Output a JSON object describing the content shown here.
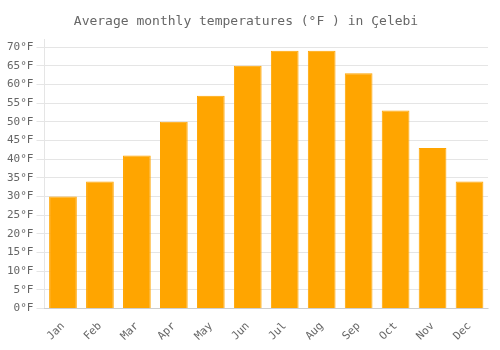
{
  "chart_data": {
    "type": "bar",
    "title": "Average monthly temperatures (°F ) in Çelebi",
    "categories": [
      "Jan",
      "Feb",
      "Mar",
      "Apr",
      "May",
      "Jun",
      "Jul",
      "Aug",
      "Sep",
      "Oct",
      "Nov",
      "Dec"
    ],
    "values": [
      30,
      34,
      41,
      50,
      57,
      65,
      69,
      69,
      63,
      53,
      43,
      34
    ],
    "color": "#FFA500",
    "ylim": [
      0,
      72
    ],
    "yticks": [
      {
        "value": 0,
        "label": "0°F"
      },
      {
        "value": 5,
        "label": "5°F"
      },
      {
        "value": 10,
        "label": "10°F"
      },
      {
        "value": 15,
        "label": "15°F"
      },
      {
        "value": 20,
        "label": "20°F"
      },
      {
        "value": 25,
        "label": "25°F"
      },
      {
        "value": 30,
        "label": "30°F"
      },
      {
        "value": 35,
        "label": "35°F"
      },
      {
        "value": 40,
        "label": "40°F"
      },
      {
        "value": 45,
        "label": "45°F"
      },
      {
        "value": 50,
        "label": "50°F"
      },
      {
        "value": 55,
        "label": "55°F"
      },
      {
        "value": 60,
        "label": "60°F"
      },
      {
        "value": 65,
        "label": "65°F"
      },
      {
        "value": 70,
        "label": "70°F"
      }
    ],
    "grid": true
  }
}
